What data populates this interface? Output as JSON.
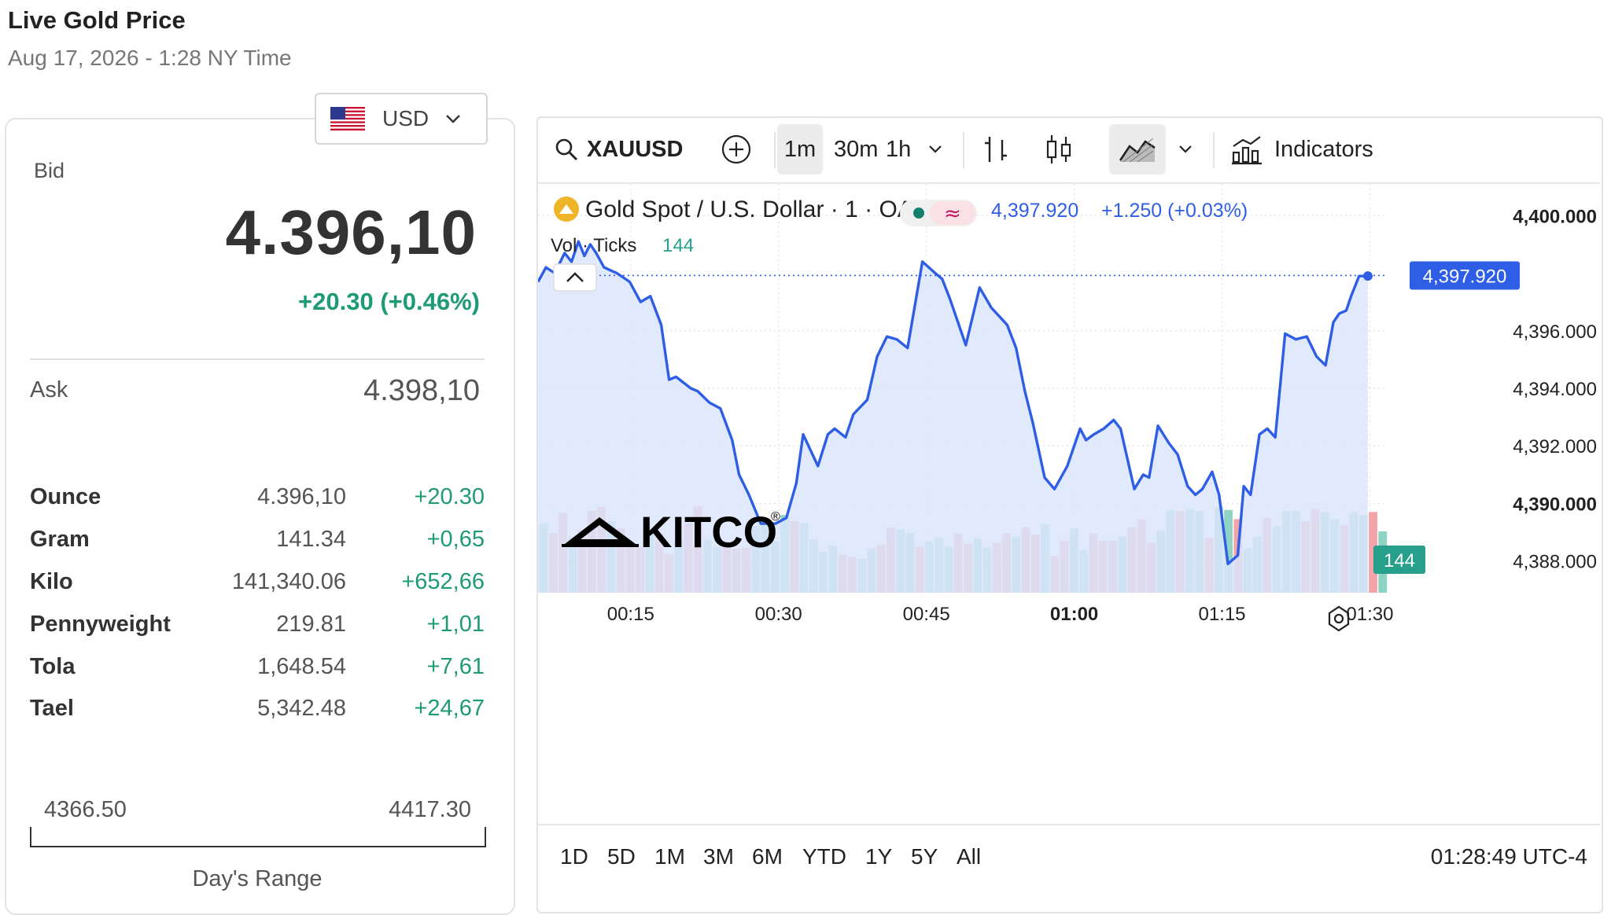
{
  "header": {
    "title": "Live Gold Price",
    "subtitle": "Aug 17, 2026 - 1:28 NY Time"
  },
  "currency": {
    "label": "USD",
    "icon": "us-flag-icon"
  },
  "quote": {
    "bid_label": "Bid",
    "bid": "4.396,10",
    "change": "+20.30 (+0.46%)",
    "ask_label": "Ask",
    "ask": "4.398,10"
  },
  "units": [
    {
      "name": "Ounce",
      "price": "4.396,10",
      "change": "+20.30"
    },
    {
      "name": "Gram",
      "price": "141.34",
      "change": "+0,65"
    },
    {
      "name": "Kilo",
      "price": "141,340.06",
      "change": "+652,66"
    },
    {
      "name": "Pennyweight",
      "price": "219.81",
      "change": "+1,01"
    },
    {
      "name": "Tola",
      "price": "1,648.54",
      "change": "+7,61"
    },
    {
      "name": "Tael",
      "price": "5,342.48",
      "change": "+24,67"
    }
  ],
  "day_range": {
    "low": "4366.50",
    "high": "4417.30",
    "label": "Day's Range"
  },
  "toolbar": {
    "symbol": "XAUUSD",
    "intervals": [
      "1m",
      "30m",
      "1h"
    ],
    "selected_interval": "1m",
    "indicators_label": "Indicators"
  },
  "legend": {
    "title": "Gold Spot / U.S. Dollar · 1 · OANDA",
    "price": "4,397.920",
    "change": "+1.250 (+0.03%)",
    "vol_label": "Vol · Ticks",
    "vol_value": "144"
  },
  "brand": {
    "name": "KITCO",
    "mark": "®"
  },
  "periods": [
    "1D",
    "5D",
    "1M",
    "3M",
    "6M",
    "YTD",
    "1Y",
    "5Y",
    "All"
  ],
  "clock": "01:28:49 UTC-4",
  "colors": {
    "line": "#2f5ee6",
    "up": "#1f9a76",
    "vol_up": "#8fd3c5",
    "vol_down": "#f2a4a8",
    "price_tag": "#2f5ee6",
    "vol_tag": "#26a08a"
  },
  "chart_data": {
    "type": "area",
    "x_ticks": [
      "00:15",
      "00:30",
      "00:45",
      "01:00",
      "01:15",
      "01:30"
    ],
    "x_tick_minutes": [
      15,
      30,
      45,
      60,
      75,
      90
    ],
    "x_range_minutes": [
      5.6,
      91.8
    ],
    "y_ticks": [
      "4,400.000",
      "4,396.000",
      "4,394.000",
      "4,392.000",
      "4,390.000",
      "4,388.000"
    ],
    "y_tick_values": [
      4400,
      4396,
      4394,
      4392,
      4390,
      4388
    ],
    "y_range": [
      4386.9,
      4401.1
    ],
    "last_price_label": "4,397.920",
    "last_price": 4397.92,
    "volume_label": "144",
    "grid": true,
    "price_series": {
      "name": "Gold Spot / U.S. Dollar",
      "x": [
        5.6,
        6.4,
        7.3,
        8.3,
        9.0,
        9.7,
        10.3,
        10.9,
        11.5,
        12.3,
        13.6,
        14.9,
        16.0,
        17.0,
        18.1,
        18.9,
        19.6,
        21.1,
        21.8,
        23.0,
        24.1,
        25.3,
        26.0,
        27.0,
        28.2,
        29.7,
        30.8,
        31.8,
        32.5,
        34.0,
        35.0,
        35.7,
        36.8,
        37.6,
        39.0,
        40.0,
        41.0,
        42.0,
        43.1,
        44.6,
        45.9,
        46.6,
        47.4,
        49.0,
        50.4,
        51.6,
        53.2,
        54.1,
        55.0,
        55.8,
        57.0,
        58.0,
        59.3,
        60.6,
        61.2,
        62.0,
        63.0,
        64.0,
        64.7,
        66.1,
        67.0,
        67.6,
        68.5,
        69.6,
        70.5,
        71.5,
        72.3,
        73.0,
        74.0,
        74.7,
        75.6,
        76.6,
        77.2,
        77.9,
        78.8,
        79.6,
        80.4,
        81.4,
        82.5,
        83.6,
        84.6,
        85.5,
        86.3,
        86.9,
        87.6,
        88.1,
        88.9,
        89.8
      ],
      "y": [
        4397.7,
        4398.2,
        4398.0,
        4398.7,
        4398.4,
        4399.1,
        4398.6,
        4399.0,
        4398.7,
        4398.2,
        4398.0,
        4397.7,
        4397.0,
        4397.2,
        4396.2,
        4394.3,
        4394.4,
        4394.0,
        4393.9,
        4393.5,
        4393.3,
        4392.2,
        4391.0,
        4390.3,
        4389.3,
        4389.3,
        4389.5,
        4390.7,
        4392.4,
        4391.3,
        4392.4,
        4392.6,
        4392.3,
        4393.1,
        4393.6,
        4395.1,
        4395.8,
        4395.7,
        4395.4,
        4398.4,
        4398.0,
        4397.8,
        4397.1,
        4395.5,
        4397.5,
        4396.8,
        4396.2,
        4395.4,
        4393.9,
        4392.8,
        4390.9,
        4390.5,
        4391.3,
        4392.6,
        4392.2,
        4392.4,
        4392.6,
        4392.9,
        4392.6,
        4390.5,
        4391.0,
        4390.9,
        4392.7,
        4392.1,
        4391.7,
        4390.6,
        4390.3,
        4390.5,
        4391.1,
        4390.3,
        4387.9,
        4388.2,
        4390.6,
        4390.3,
        4392.4,
        4392.6,
        4392.3,
        4395.9,
        4395.7,
        4395.8,
        4395.1,
        4394.8,
        4396.3,
        4396.6,
        4396.7,
        4397.2,
        4397.9,
        4397.9
      ],
      "area_fill": true
    },
    "volume_series": {
      "name": "Vol",
      "values": [
        68,
        58,
        78,
        55,
        61,
        80,
        84,
        70,
        63,
        48,
        45,
        64,
        58,
        38,
        50,
        68,
        85,
        52,
        45,
        50,
        43,
        44,
        66,
        72,
        50,
        76,
        70,
        68,
        52,
        40,
        46,
        37,
        35,
        33,
        43,
        47,
        64,
        62,
        58,
        45,
        50,
        54,
        45,
        58,
        48,
        53,
        44,
        49,
        58,
        55,
        64,
        57,
        67,
        36,
        51,
        63,
        42,
        58,
        51,
        51,
        55,
        64,
        72,
        49,
        61,
        81,
        80,
        82,
        80,
        54,
        84,
        81,
        72,
        43,
        55,
        73,
        65,
        80,
        80,
        70,
        82,
        79,
        72,
        66,
        79,
        76,
        79,
        60
      ],
      "up": [
        1,
        0,
        0,
        1,
        0,
        0,
        0,
        1,
        0,
        0,
        0,
        1,
        0,
        0,
        1,
        0,
        0,
        1,
        1,
        0,
        0,
        0,
        1,
        1,
        1,
        1,
        0,
        1,
        1,
        1,
        1,
        0,
        0,
        1,
        1,
        0,
        0,
        1,
        1,
        0,
        1,
        1,
        1,
        0,
        0,
        1,
        1,
        0,
        0,
        1,
        0,
        0,
        1,
        0,
        0,
        1,
        1,
        0,
        0,
        0,
        1,
        0,
        0,
        0,
        1,
        1,
        0,
        1,
        1,
        0,
        1,
        1,
        0,
        1,
        1,
        0,
        1,
        1,
        1,
        0,
        0,
        1,
        1,
        0,
        1,
        1,
        0,
        1
      ],
      "current": 144
    }
  }
}
